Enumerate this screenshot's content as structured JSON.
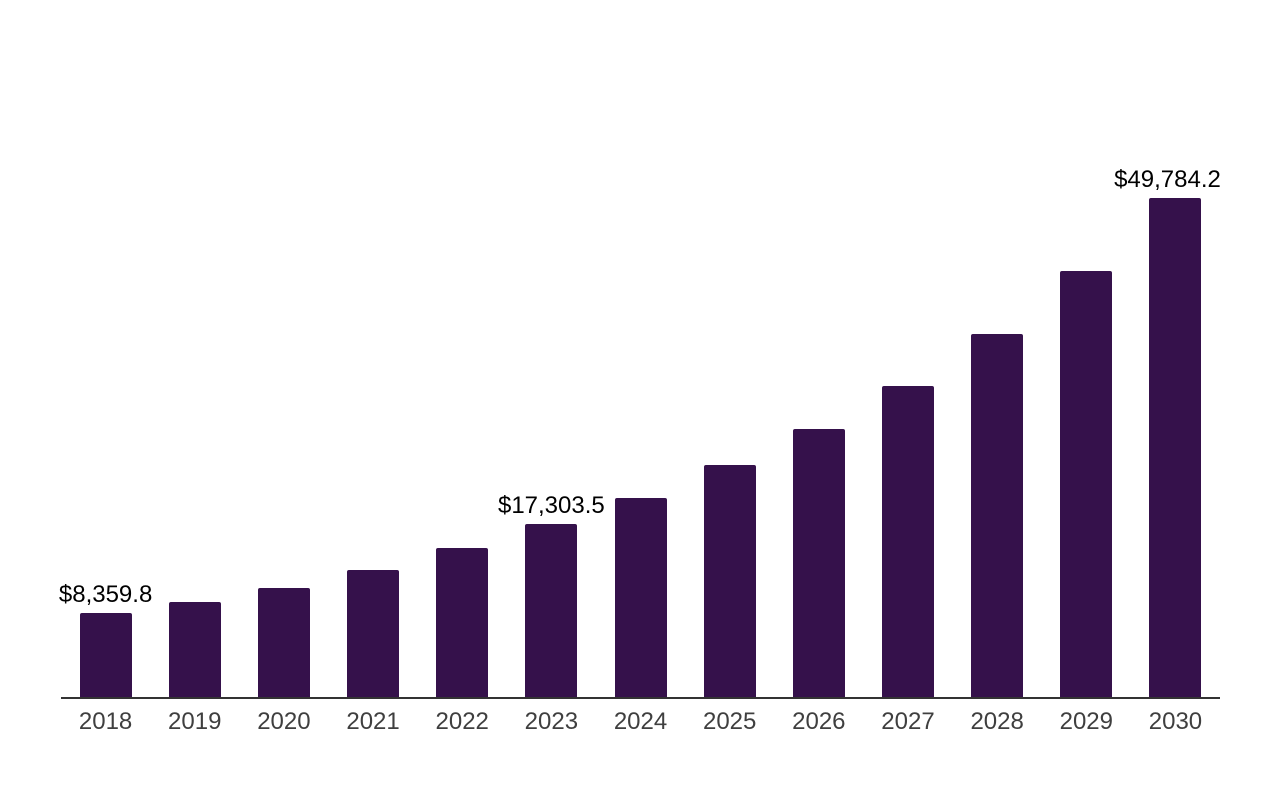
{
  "chart_data": {
    "type": "bar",
    "title": "",
    "xlabel": "",
    "ylabel": "",
    "categories": [
      "2018",
      "2019",
      "2020",
      "2021",
      "2022",
      "2023",
      "2024",
      "2025",
      "2026",
      "2027",
      "2028",
      "2029",
      "2030"
    ],
    "values": [
      8359.8,
      9500,
      10900,
      12700,
      14900,
      17303.5,
      19900,
      23100,
      26700,
      31000,
      36200,
      42500,
      49784.2
    ],
    "value_labels": [
      "$8,359.8",
      "",
      "",
      "",
      "",
      "$17,303.5",
      "",
      "",
      "",
      "",
      "",
      "",
      "$49,784.2"
    ],
    "labeled_points": [
      {
        "category": "2018",
        "label": "$8,359.8"
      },
      {
        "category": "2023",
        "label": "$17,303.5"
      },
      {
        "category": "2030",
        "label": "$49,784.2"
      }
    ],
    "ylim": [
      0,
      50000
    ],
    "grid": false,
    "legend": false,
    "y_axis_visible": false,
    "x_axis_line": true
  },
  "colors": {
    "bar": "#35114B",
    "axis_line": "#333333",
    "tick_label": "#3F3F3F",
    "data_label": "#000000",
    "background": "#FFFFFF"
  }
}
